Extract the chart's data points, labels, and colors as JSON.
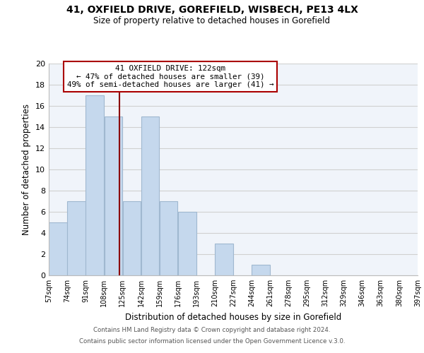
{
  "title1": "41, OXFIELD DRIVE, GOREFIELD, WISBECH, PE13 4LX",
  "title2": "Size of property relative to detached houses in Gorefield",
  "xlabel": "Distribution of detached houses by size in Gorefield",
  "ylabel": "Number of detached properties",
  "bin_edges": [
    57,
    74,
    91,
    108,
    125,
    142,
    159,
    176,
    193,
    210,
    227,
    244,
    261,
    278,
    295,
    312,
    329,
    346,
    363,
    380,
    397
  ],
  "counts": [
    5,
    7,
    17,
    15,
    7,
    15,
    7,
    6,
    0,
    3,
    0,
    1,
    0,
    0,
    0,
    0,
    0,
    0,
    0,
    0
  ],
  "bar_color": "#c5d8ed",
  "bar_edgecolor": "#a0b8d0",
  "vline_x": 122,
  "vline_color": "#8b0000",
  "ylim": [
    0,
    20
  ],
  "yticks": [
    0,
    2,
    4,
    6,
    8,
    10,
    12,
    14,
    16,
    18,
    20
  ],
  "annotation_title": "41 OXFIELD DRIVE: 122sqm",
  "annotation_line1": "← 47% of detached houses are smaller (39)",
  "annotation_line2": "49% of semi-detached houses are larger (41) →",
  "annotation_box_color": "#ffffff",
  "annotation_box_edgecolor": "#aa0000",
  "footer1": "Contains HM Land Registry data © Crown copyright and database right 2024.",
  "footer2": "Contains public sector information licensed under the Open Government Licence v.3.0.",
  "tick_labels": [
    "57sqm",
    "74sqm",
    "91sqm",
    "108sqm",
    "125sqm",
    "142sqm",
    "159sqm",
    "176sqm",
    "193sqm",
    "210sqm",
    "227sqm",
    "244sqm",
    "261sqm",
    "278sqm",
    "295sqm",
    "312sqm",
    "329sqm",
    "346sqm",
    "363sqm",
    "380sqm",
    "397sqm"
  ],
  "grid_color": "#d0d0d0",
  "background_color": "#f0f4fa"
}
